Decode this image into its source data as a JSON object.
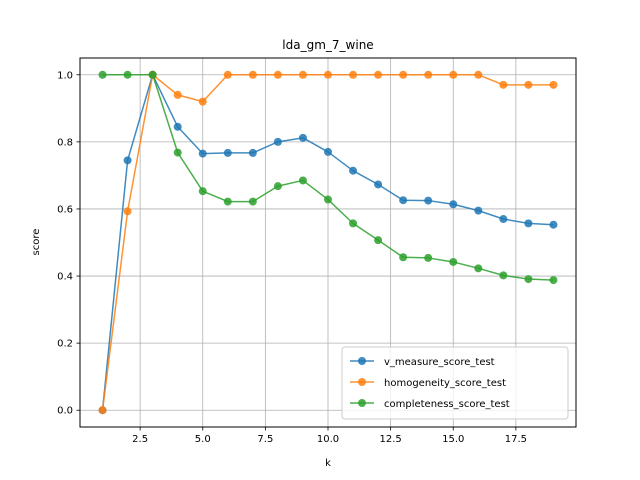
{
  "chart_data": {
    "type": "line",
    "title": "lda_gm_7_wine",
    "xlabel": "k",
    "ylabel": "score",
    "x": [
      1,
      2,
      3,
      4,
      5,
      6,
      7,
      8,
      9,
      10,
      11,
      12,
      13,
      14,
      15,
      16,
      17,
      18,
      19
    ],
    "xlim": [
      0.1,
      19.9
    ],
    "ylim": [
      -0.05,
      1.05
    ],
    "xticks": [
      "2.5",
      "5.0",
      "7.5",
      "10.0",
      "12.5",
      "15.0",
      "17.5"
    ],
    "xtick_values": [
      2.5,
      5.0,
      7.5,
      10.0,
      12.5,
      15.0,
      17.5
    ],
    "yticks": [
      "0.0",
      "0.2",
      "0.4",
      "0.6",
      "0.8",
      "1.0"
    ],
    "ytick_values": [
      0.0,
      0.2,
      0.4,
      0.6,
      0.8,
      1.0
    ],
    "grid": true,
    "legend_position": "lower-right",
    "series": [
      {
        "name": "v_measure_score_test",
        "color": "#1f77b4",
        "values": [
          0.0,
          0.745,
          1.0,
          0.845,
          0.765,
          0.767,
          0.767,
          0.8,
          0.812,
          0.77,
          0.714,
          0.673,
          0.626,
          0.625,
          0.614,
          0.595,
          0.57,
          0.557,
          0.553
        ]
      },
      {
        "name": "homogeneity_score_test",
        "color": "#ff7f0e",
        "values": [
          0.0,
          0.593,
          1.0,
          0.94,
          0.92,
          1.0,
          1.0,
          1.0,
          1.0,
          1.0,
          1.0,
          1.0,
          1.0,
          1.0,
          1.0,
          1.0,
          0.97,
          0.97,
          0.97
        ]
      },
      {
        "name": "completeness_score_test",
        "color": "#2ca02c",
        "values": [
          1.0,
          1.0,
          1.0,
          0.768,
          0.653,
          0.622,
          0.622,
          0.668,
          0.685,
          0.628,
          0.557,
          0.507,
          0.456,
          0.454,
          0.442,
          0.423,
          0.402,
          0.391,
          0.388
        ]
      }
    ]
  }
}
